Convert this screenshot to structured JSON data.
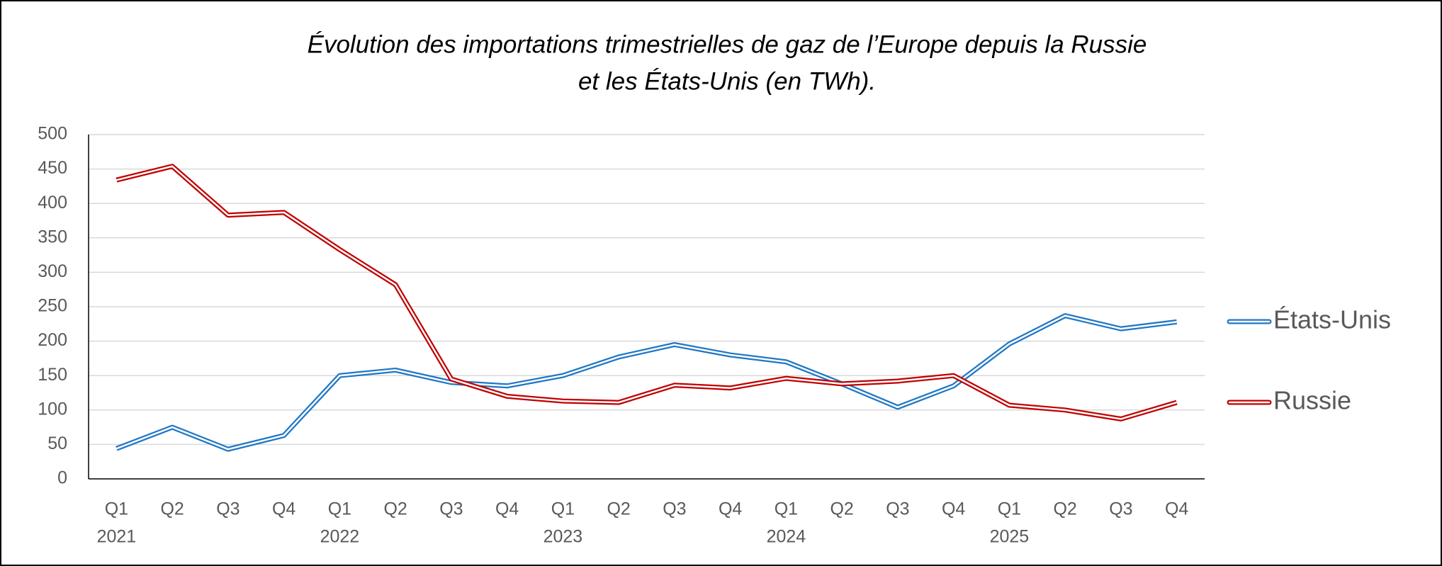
{
  "chart_data": {
    "type": "line",
    "title": [
      "Évolution des importations trimestrielles de gaz de l’Europe depuis la Russie",
      "et les États-Unis (en TWh)."
    ],
    "categories": [
      "Q1",
      "Q2",
      "Q3",
      "Q4",
      "Q1",
      "Q2",
      "Q3",
      "Q4",
      "Q1",
      "Q2",
      "Q3",
      "Q4",
      "Q1",
      "Q2",
      "Q3",
      "Q4",
      "Q1",
      "Q2",
      "Q3",
      "Q4"
    ],
    "years": [
      "2021",
      "2022",
      "2023",
      "2024",
      "2025"
    ],
    "series": [
      {
        "name": "États-Unis",
        "color": "#1f77c4",
        "values": [
          44,
          75,
          43,
          63,
          150,
          158,
          140,
          135,
          150,
          177,
          195,
          180,
          170,
          138,
          104,
          135,
          196,
          237,
          218,
          228
        ]
      },
      {
        "name": "Russie",
        "color": "#c00000",
        "values": [
          434,
          454,
          383,
          387,
          333,
          282,
          145,
          120,
          113,
          111,
          136,
          132,
          146,
          138,
          142,
          150,
          107,
          100,
          87,
          111
        ]
      }
    ],
    "ylim": [
      0,
      500
    ],
    "yticks": [
      0,
      50,
      100,
      150,
      200,
      250,
      300,
      350,
      400,
      450,
      500
    ],
    "grid": true,
    "legend": "right"
  }
}
